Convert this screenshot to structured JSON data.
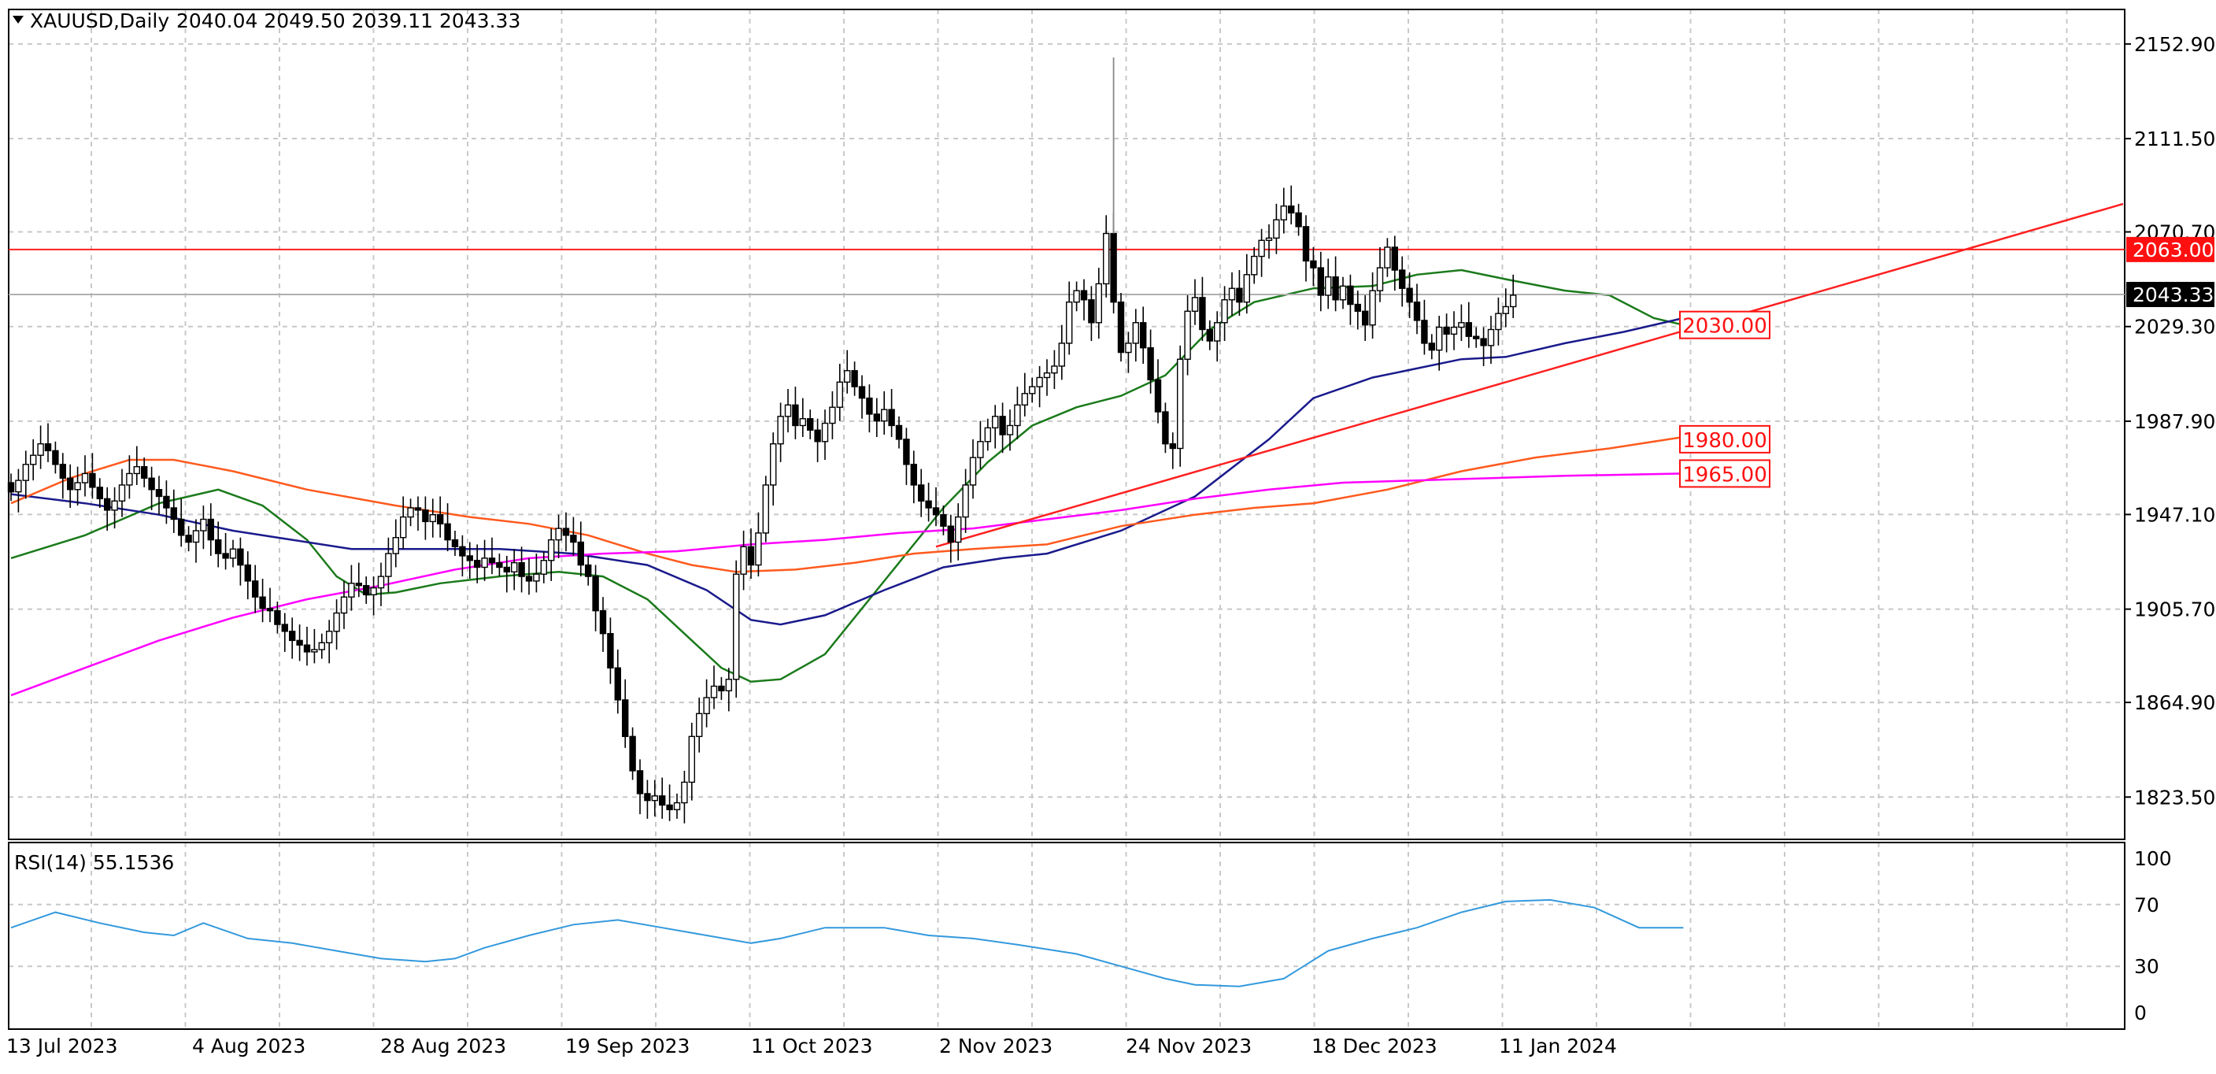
{
  "header": {
    "symbol": "XAUUSD,Daily",
    "ohlc": "2040.04 2049.50 2039.11 2043.33"
  },
  "rsi_panel": {
    "label": "RSI(14) 55.1536"
  },
  "colors": {
    "grid": "#c8c8c8",
    "ma_fast": "#1a7a1a",
    "ma_mid": "#1a1a8c",
    "ma_slow": "#ff5a1e",
    "ma_long": "#ff00ff",
    "rsi": "#3399dd",
    "level": "#ff2020",
    "price_tag": "#000000",
    "level_tag_bg": "#ff1010"
  },
  "chart_data": [
    {
      "type": "candlestick",
      "title": "XAUUSD,Daily",
      "ylim": [
        1805,
        2168
      ],
      "y_ticks": [
        1823.5,
        1864.9,
        1905.7,
        1947.1,
        1987.9,
        2029.3,
        2070.7,
        2111.5,
        2152.9
      ],
      "y_tick_labels": [
        "1823.50",
        "1864.90",
        "1905.70",
        "1947.10",
        "1987.90",
        "2029.30",
        "2070.70",
        "2111.50",
        "2152.90"
      ],
      "x_tick_labels": [
        "13 Jul 2023",
        "4 Aug 2023",
        "28 Aug 2023",
        "19 Sep 2023",
        "11 Oct 2023",
        "2 Nov 2023",
        "24 Nov 2023",
        "18 Dec 2023",
        "11 Jan 2024"
      ],
      "last_price": 2043.33,
      "last_price_label": "2043.33",
      "resistance": {
        "value": 2063.0,
        "label": "2063.00"
      },
      "level_labels": [
        {
          "value": 2030.0,
          "label": "2030.00"
        },
        {
          "value": 1980.0,
          "label": "1980.00"
        },
        {
          "value": 1965.0,
          "label": "1965.00"
        }
      ],
      "trendline": {
        "from_bar": 125,
        "from_price": 1933,
        "to_bar": 278,
        "to_price": 2076
      },
      "candle_seeds": {
        "opens_start": 1961,
        "closes": [
          1957,
          1962,
          1969,
          1973,
          1978,
          1975,
          1969,
          1963,
          1958,
          1961,
          1965,
          1959,
          1954,
          1949,
          1953,
          1960,
          1965,
          1968,
          1963,
          1958,
          1955,
          1950,
          1945,
          1938,
          1935,
          1940,
          1945,
          1936,
          1930,
          1928,
          1932,
          1925,
          1918,
          1911,
          1906,
          1905,
          1899,
          1896,
          1892,
          1890,
          1887,
          1888,
          1891,
          1896,
          1904,
          1911,
          1917,
          1916,
          1912,
          1915,
          1920,
          1930,
          1937,
          1946,
          1950,
          1949,
          1944,
          1947,
          1943,
          1936,
          1933,
          1929,
          1927,
          1924,
          1928,
          1926,
          1924,
          1922,
          1926,
          1920,
          1918,
          1921,
          1927,
          1936,
          1941,
          1938,
          1935,
          1925,
          1920,
          1905,
          1895,
          1880,
          1866,
          1850,
          1835,
          1825,
          1822,
          1824,
          1820,
          1818,
          1821,
          1830,
          1850,
          1860,
          1867,
          1872,
          1870,
          1875,
          1921,
          1933,
          1925,
          1939,
          1960,
          1978,
          1990,
          1995,
          1986,
          1989,
          1984,
          1979,
          1987,
          1994,
          2005,
          2010,
          2003,
          1998,
          1991,
          1988,
          1993,
          1986,
          1980,
          1969,
          1960,
          1953,
          1950,
          1947,
          1942,
          1935,
          1946,
          1960,
          1972,
          1979,
          1985,
          1990,
          1982,
          1986,
          1995,
          2000,
          2003,
          2007,
          2009,
          2012,
          2022,
          2040,
          2045,
          2041,
          2031,
          2048,
          2070,
          2040,
          2018,
          2022,
          2031,
          2020,
          2006,
          1992,
          1978,
          1976,
          2015,
          2036,
          2042,
          2028,
          2023,
          2031,
          2041,
          2046,
          2040,
          2052,
          2060,
          2067,
          2068,
          2076,
          2082,
          2079,
          2073,
          2058,
          2055,
          2043,
          2051,
          2041,
          2047,
          2039,
          2036,
          2030,
          2045,
          2055,
          2064,
          2054,
          2046,
          2040,
          2032,
          2022,
          2019,
          2029,
          2026,
          2029,
          2031,
          2025,
          2024,
          2021,
          2028,
          2035,
          2038,
          2043
        ]
      },
      "series": [
        {
          "name": "",
          "kind": "ma",
          "color_key": "ma_fast",
          "points": [
            [
              0,
              1928
            ],
            [
              10,
              1938
            ],
            [
              20,
              1952
            ],
            [
              28,
              1958
            ],
            [
              34,
              1951
            ],
            [
              40,
              1936
            ],
            [
              44,
              1920
            ],
            [
              48,
              1912
            ],
            [
              52,
              1913
            ],
            [
              58,
              1917
            ],
            [
              66,
              1920
            ],
            [
              74,
              1922
            ],
            [
              80,
              1920
            ],
            [
              86,
              1910
            ],
            [
              92,
              1892
            ],
            [
              96,
              1880
            ],
            [
              100,
              1874
            ],
            [
              104,
              1875
            ],
            [
              110,
              1886
            ],
            [
              118,
              1918
            ],
            [
              126,
              1950
            ],
            [
              132,
              1970
            ],
            [
              138,
              1986
            ],
            [
              144,
              1994
            ],
            [
              150,
              1999
            ],
            [
              156,
              2008
            ],
            [
              162,
              2028
            ],
            [
              168,
              2040
            ],
            [
              176,
              2046
            ],
            [
              184,
              2047
            ],
            [
              190,
              2052
            ],
            [
              196,
              2054
            ],
            [
              202,
              2050
            ],
            [
              210,
              2045
            ],
            [
              216,
              2043
            ],
            [
              222,
              2033
            ],
            [
              226,
              2030
            ]
          ]
        },
        {
          "name": "",
          "kind": "ma",
          "color_key": "ma_mid",
          "points": [
            [
              0,
              1956
            ],
            [
              10,
              1952
            ],
            [
              20,
              1947
            ],
            [
              30,
              1940
            ],
            [
              38,
              1936
            ],
            [
              46,
              1932
            ],
            [
              54,
              1932
            ],
            [
              66,
              1932
            ],
            [
              76,
              1930
            ],
            [
              86,
              1925
            ],
            [
              94,
              1914
            ],
            [
              100,
              1901
            ],
            [
              104,
              1899
            ],
            [
              110,
              1903
            ],
            [
              118,
              1914
            ],
            [
              126,
              1924
            ],
            [
              134,
              1928
            ],
            [
              140,
              1930
            ],
            [
              150,
              1940
            ],
            [
              160,
              1955
            ],
            [
              170,
              1980
            ],
            [
              176,
              1998
            ],
            [
              184,
              2007
            ],
            [
              190,
              2011
            ],
            [
              196,
              2015
            ],
            [
              202,
              2016
            ],
            [
              210,
              2022
            ],
            [
              218,
              2027
            ],
            [
              226,
              2033
            ]
          ]
        },
        {
          "name": "",
          "kind": "ma",
          "color_key": "ma_slow",
          "points": [
            [
              0,
              1952
            ],
            [
              8,
              1963
            ],
            [
              16,
              1971
            ],
            [
              22,
              1971
            ],
            [
              30,
              1966
            ],
            [
              40,
              1958
            ],
            [
              52,
              1951
            ],
            [
              62,
              1946
            ],
            [
              70,
              1943
            ],
            [
              78,
              1938
            ],
            [
              86,
              1930
            ],
            [
              92,
              1925
            ],
            [
              98,
              1922
            ],
            [
              106,
              1923
            ],
            [
              114,
              1926
            ],
            [
              122,
              1930
            ],
            [
              130,
              1932
            ],
            [
              140,
              1934
            ],
            [
              150,
              1942
            ],
            [
              160,
              1947
            ],
            [
              168,
              1950
            ],
            [
              176,
              1952
            ],
            [
              186,
              1958
            ],
            [
              196,
              1966
            ],
            [
              206,
              1972
            ],
            [
              216,
              1976
            ],
            [
              226,
              1981
            ]
          ]
        },
        {
          "name": "",
          "kind": "ma",
          "color_key": "ma_long",
          "points": [
            [
              0,
              1868
            ],
            [
              10,
              1880
            ],
            [
              20,
              1892
            ],
            [
              30,
              1902
            ],
            [
              40,
              1910
            ],
            [
              50,
              1916
            ],
            [
              60,
              1923
            ],
            [
              70,
              1928
            ],
            [
              80,
              1930
            ],
            [
              90,
              1931
            ],
            [
              100,
              1934
            ],
            [
              110,
              1936
            ],
            [
              120,
              1939
            ],
            [
              130,
              1941
            ],
            [
              140,
              1945
            ],
            [
              150,
              1949
            ],
            [
              160,
              1954
            ],
            [
              170,
              1958
            ],
            [
              180,
              1961
            ],
            [
              190,
              1962
            ],
            [
              200,
              1963
            ],
            [
              210,
              1964
            ],
            [
              226,
              1965
            ]
          ]
        },
        {
          "name": "RSI(14)",
          "kind": "rsi",
          "color_key": "rsi",
          "ylim": [
            0,
            100
          ],
          "y_ticks": [
            0,
            30,
            70,
            100
          ],
          "y_tick_labels": [
            "0",
            "30",
            "70",
            "100"
          ],
          "points": [
            [
              0,
              55
            ],
            [
              6,
              65
            ],
            [
              12,
              58
            ],
            [
              18,
              52
            ],
            [
              22,
              50
            ],
            [
              26,
              58
            ],
            [
              32,
              48
            ],
            [
              38,
              45
            ],
            [
              44,
              40
            ],
            [
              50,
              35
            ],
            [
              56,
              33
            ],
            [
              60,
              35
            ],
            [
              64,
              42
            ],
            [
              70,
              50
            ],
            [
              76,
              57
            ],
            [
              82,
              60
            ],
            [
              88,
              55
            ],
            [
              94,
              50
            ],
            [
              100,
              45
            ],
            [
              104,
              48
            ],
            [
              110,
              55
            ],
            [
              118,
              55
            ],
            [
              124,
              50
            ],
            [
              130,
              48
            ],
            [
              136,
              44
            ],
            [
              144,
              38
            ],
            [
              150,
              30
            ],
            [
              156,
              22
            ],
            [
              160,
              18
            ],
            [
              166,
              17
            ],
            [
              172,
              22
            ],
            [
              178,
              40
            ],
            [
              184,
              48
            ],
            [
              190,
              55
            ],
            [
              196,
              65
            ],
            [
              202,
              72
            ],
            [
              208,
              73
            ],
            [
              214,
              68
            ],
            [
              220,
              55
            ],
            [
              226,
              55
            ]
          ]
        }
      ]
    }
  ]
}
